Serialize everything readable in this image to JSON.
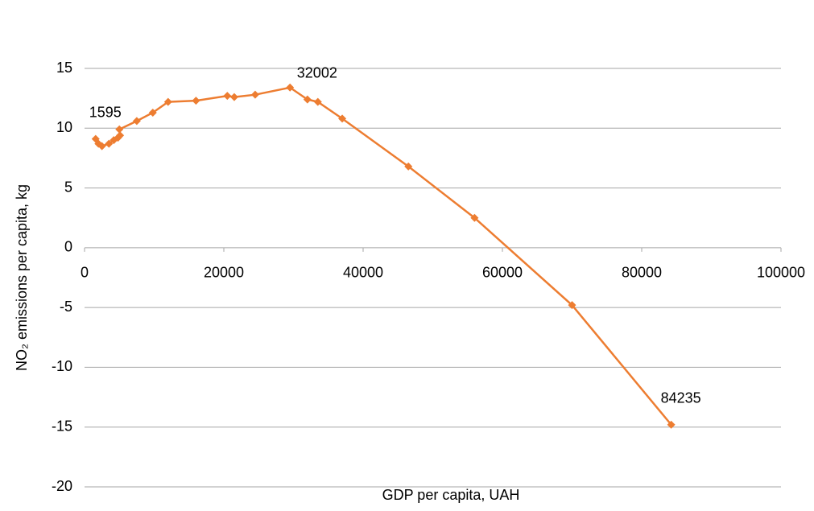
{
  "chart_data": {
    "type": "line",
    "xlabel": "GDP per capita, UAH",
    "ylabel": "NO₂ emissions per capita, kg",
    "x": [
      1595,
      2000,
      2500,
      3500,
      4200,
      4800,
      5100,
      5000,
      7500,
      9800,
      12000,
      16000,
      20500,
      21500,
      24500,
      29500,
      32002,
      33500,
      37000,
      46500,
      56000,
      70000,
      84235
    ],
    "series": [
      {
        "name": "NO₂",
        "color": "#ed7d31",
        "values": [
          9.1,
          8.7,
          8.5,
          8.7,
          9.0,
          9.2,
          9.4,
          9.9,
          10.6,
          11.3,
          12.2,
          12.3,
          12.7,
          12.6,
          12.8,
          13.4,
          12.4,
          12.2,
          10.8,
          6.8,
          2.5,
          -4.8,
          -14.8
        ],
        "point_labels": [
          "1595",
          null,
          null,
          null,
          null,
          null,
          null,
          null,
          null,
          null,
          null,
          null,
          null,
          null,
          null,
          null,
          "32002",
          null,
          null,
          null,
          null,
          null,
          "84235"
        ]
      }
    ],
    "xlim": [
      0,
      100000
    ],
    "xticks": [
      0,
      20000,
      40000,
      60000,
      80000,
      100000
    ],
    "ylim": [
      -20,
      15
    ],
    "yticks": [
      -20,
      -15,
      -10,
      -5,
      0,
      5,
      10,
      15
    ],
    "grid": true
  }
}
